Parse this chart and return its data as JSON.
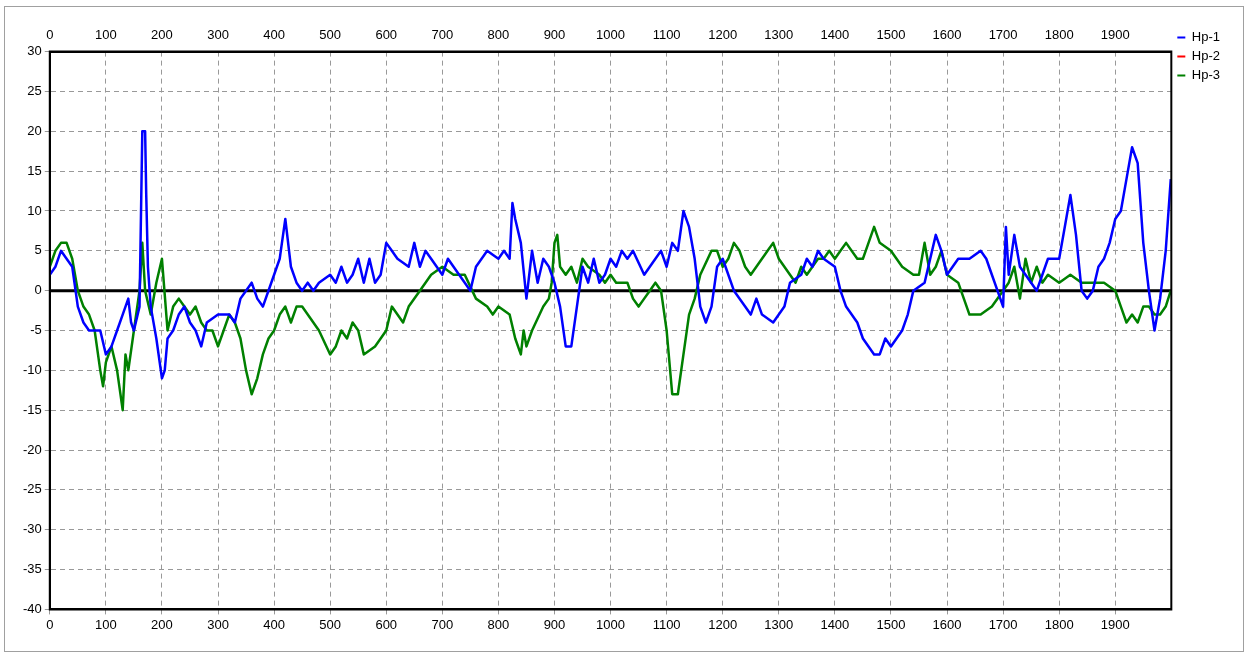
{
  "chart_data": {
    "type": "line",
    "xlim": [
      0,
      2000
    ],
    "xticks": [
      0,
      100,
      200,
      300,
      400,
      500,
      600,
      700,
      800,
      900,
      1000,
      1100,
      1200,
      1300,
      1400,
      1500,
      1600,
      1700,
      1800,
      1900
    ],
    "x2lim": [
      0,
      2000
    ],
    "x2ticks": [
      0,
      100,
      200,
      300,
      400,
      500,
      600,
      700,
      800,
      900,
      1000,
      1100,
      1200,
      1300,
      1400,
      1500,
      1600,
      1700,
      1800,
      1900
    ],
    "ylim": [
      -40,
      30
    ],
    "yticks": [
      -40,
      -35,
      -30,
      -25,
      -20,
      -15,
      -10,
      -5,
      0,
      5,
      10,
      15,
      20,
      25,
      30
    ],
    "grid": true,
    "legend": "top right",
    "marker": "none",
    "line_style": "solid",
    "ref_lines": [
      {
        "axis": "y",
        "value": 0,
        "color": "#000000"
      }
    ],
    "series": [
      {
        "name": "Hp-1",
        "color": "#0000ff",
        "x": [
          0,
          10,
          20,
          40,
          50,
          60,
          70,
          90,
          100,
          110,
          120,
          130,
          140,
          145,
          150,
          160,
          165,
          170,
          172,
          175,
          180,
          190,
          200,
          205,
          210,
          220,
          230,
          240,
          250,
          260,
          270,
          280,
          300,
          320,
          330,
          340,
          350,
          360,
          370,
          380,
          400,
          410,
          420,
          430,
          440,
          450,
          460,
          470,
          480,
          500,
          510,
          520,
          530,
          540,
          550,
          560,
          570,
          580,
          590,
          600,
          610,
          620,
          640,
          650,
          660,
          670,
          680,
          700,
          710,
          720,
          740,
          750,
          760,
          780,
          800,
          810,
          820,
          825,
          830,
          840,
          850,
          860,
          870,
          880,
          890,
          900,
          910,
          920,
          930,
          940,
          950,
          960,
          970,
          980,
          990,
          1000,
          1010,
          1020,
          1030,
          1040,
          1060,
          1070,
          1080,
          1090,
          1100,
          1110,
          1120,
          1130,
          1140,
          1150,
          1160,
          1170,
          1180,
          1190,
          1200,
          1210,
          1220,
          1240,
          1250,
          1260,
          1270,
          1290,
          1310,
          1320,
          1340,
          1350,
          1360,
          1370,
          1380,
          1400,
          1410,
          1420,
          1440,
          1450,
          1470,
          1480,
          1490,
          1500,
          1510,
          1520,
          1530,
          1540,
          1560,
          1580,
          1590,
          1600,
          1620,
          1640,
          1660,
          1670,
          1680,
          1690,
          1700,
          1705,
          1710,
          1720,
          1730,
          1740,
          1750,
          1760,
          1770,
          1780,
          1800,
          1810,
          1820,
          1830,
          1840,
          1850,
          1860,
          1870,
          1880,
          1890,
          1900,
          1910,
          1920,
          1930,
          1940,
          1950,
          1960,
          1970,
          1980,
          1990,
          1999
        ],
        "values": [
          2,
          3,
          5,
          3,
          -2,
          -4,
          -5,
          -5,
          -8,
          -7,
          -5,
          -3,
          -1,
          -4,
          -5,
          -2,
          20,
          20,
          12,
          3,
          -2,
          -6,
          -11,
          -10,
          -6,
          -5,
          -3,
          -2,
          -4,
          -5,
          -7,
          -4,
          -3,
          -3,
          -4,
          -1,
          0,
          1,
          -1,
          -2,
          2,
          4,
          9,
          3,
          1,
          0,
          1,
          0,
          1,
          2,
          1,
          3,
          1,
          2,
          4,
          1,
          4,
          1,
          2,
          6,
          5,
          4,
          3,
          6,
          3,
          5,
          4,
          2,
          4,
          3,
          1,
          0,
          3,
          5,
          4,
          5,
          4,
          11,
          9,
          6,
          -1,
          5,
          1,
          4,
          3,
          1,
          -2,
          -7,
          -7,
          -2,
          3,
          1,
          4,
          1,
          2,
          4,
          3,
          5,
          4,
          5,
          2,
          3,
          4,
          5,
          3,
          6,
          5,
          10,
          8,
          4,
          -2,
          -4,
          -2,
          3,
          4,
          2,
          0,
          -2,
          -3,
          -1,
          -3,
          -4,
          -2,
          1,
          2,
          4,
          3,
          5,
          4,
          3,
          0,
          -2,
          -4,
          -6,
          -8,
          -8,
          -6,
          -7,
          -6,
          -5,
          -3,
          0,
          1,
          7,
          5,
          2,
          4,
          4,
          5,
          4,
          2,
          0,
          -2,
          8,
          2,
          7,
          3,
          2,
          1,
          0,
          2,
          4,
          4,
          8,
          12,
          7,
          0,
          -1,
          0,
          3,
          4,
          6,
          9,
          10,
          14,
          18,
          16,
          6,
          0,
          -5,
          -1,
          5,
          14
        ]
      },
      {
        "name": "Hp-2",
        "color": "#ff0000"
      },
      {
        "name": "Hp-3",
        "color": "#008000",
        "x": [
          0,
          10,
          20,
          30,
          40,
          50,
          60,
          70,
          80,
          90,
          95,
          100,
          110,
          120,
          130,
          135,
          140,
          150,
          160,
          165,
          170,
          180,
          190,
          200,
          210,
          220,
          230,
          240,
          250,
          260,
          270,
          280,
          290,
          300,
          310,
          320,
          330,
          340,
          350,
          360,
          370,
          380,
          390,
          400,
          410,
          420,
          430,
          440,
          450,
          460,
          480,
          500,
          510,
          520,
          530,
          540,
          550,
          560,
          580,
          600,
          610,
          630,
          640,
          660,
          680,
          700,
          720,
          740,
          760,
          780,
          790,
          800,
          820,
          830,
          840,
          845,
          850,
          860,
          880,
          890,
          895,
          900,
          905,
          910,
          920,
          930,
          940,
          950,
          960,
          980,
          990,
          1000,
          1010,
          1030,
          1040,
          1050,
          1060,
          1070,
          1080,
          1090,
          1100,
          1110,
          1120,
          1130,
          1140,
          1150,
          1160,
          1180,
          1190,
          1200,
          1210,
          1220,
          1230,
          1240,
          1250,
          1260,
          1270,
          1280,
          1290,
          1300,
          1320,
          1330,
          1340,
          1350,
          1370,
          1380,
          1390,
          1400,
          1410,
          1420,
          1440,
          1450,
          1460,
          1470,
          1480,
          1500,
          1510,
          1520,
          1540,
          1550,
          1560,
          1570,
          1580,
          1590,
          1600,
          1620,
          1630,
          1640,
          1660,
          1680,
          1700,
          1710,
          1720,
          1730,
          1740,
          1750,
          1760,
          1770,
          1780,
          1800,
          1820,
          1840,
          1860,
          1880,
          1900,
          1910,
          1920,
          1930,
          1940,
          1950,
          1960,
          1970,
          1980,
          1990,
          1999
        ],
        "values": [
          3,
          5,
          6,
          6,
          4,
          0,
          -2,
          -3,
          -5,
          -10,
          -12,
          -9,
          -7,
          -10,
          -15,
          -8,
          -10,
          -5,
          0,
          6,
          0,
          -3,
          1,
          4,
          -5,
          -2,
          -1,
          -2,
          -3,
          -2,
          -4,
          -5,
          -5,
          -7,
          -5,
          -3,
          -4,
          -6,
          -10,
          -13,
          -11,
          -8,
          -6,
          -5,
          -3,
          -2,
          -4,
          -2,
          -2,
          -3,
          -5,
          -8,
          -7,
          -5,
          -6,
          -4,
          -5,
          -8,
          -7,
          -5,
          -2,
          -4,
          -2,
          0,
          2,
          3,
          2,
          2,
          -1,
          -2,
          -3,
          -2,
          -3,
          -6,
          -8,
          -5,
          -7,
          -5,
          -2,
          -1,
          1,
          6,
          7,
          3,
          2,
          3,
          1,
          4,
          3,
          2,
          1,
          2,
          1,
          1,
          -1,
          -2,
          -1,
          0,
          1,
          0,
          -5,
          -13,
          -13,
          -8,
          -3,
          -1,
          2,
          5,
          5,
          3,
          4,
          6,
          5,
          3,
          2,
          3,
          4,
          5,
          6,
          4,
          2,
          1,
          3,
          2,
          4,
          4,
          5,
          4,
          5,
          6,
          4,
          4,
          6,
          8,
          6,
          5,
          4,
          3,
          2,
          2,
          6,
          2,
          3,
          5,
          2,
          1,
          -1,
          -3,
          -3,
          -2,
          0,
          1,
          3,
          -1,
          4,
          1,
          3,
          1,
          2,
          1,
          2,
          1,
          1,
          1,
          0,
          -2,
          -4,
          -3,
          -4,
          -2,
          -2,
          -3,
          -3,
          -2,
          0
        ]
      }
    ]
  }
}
